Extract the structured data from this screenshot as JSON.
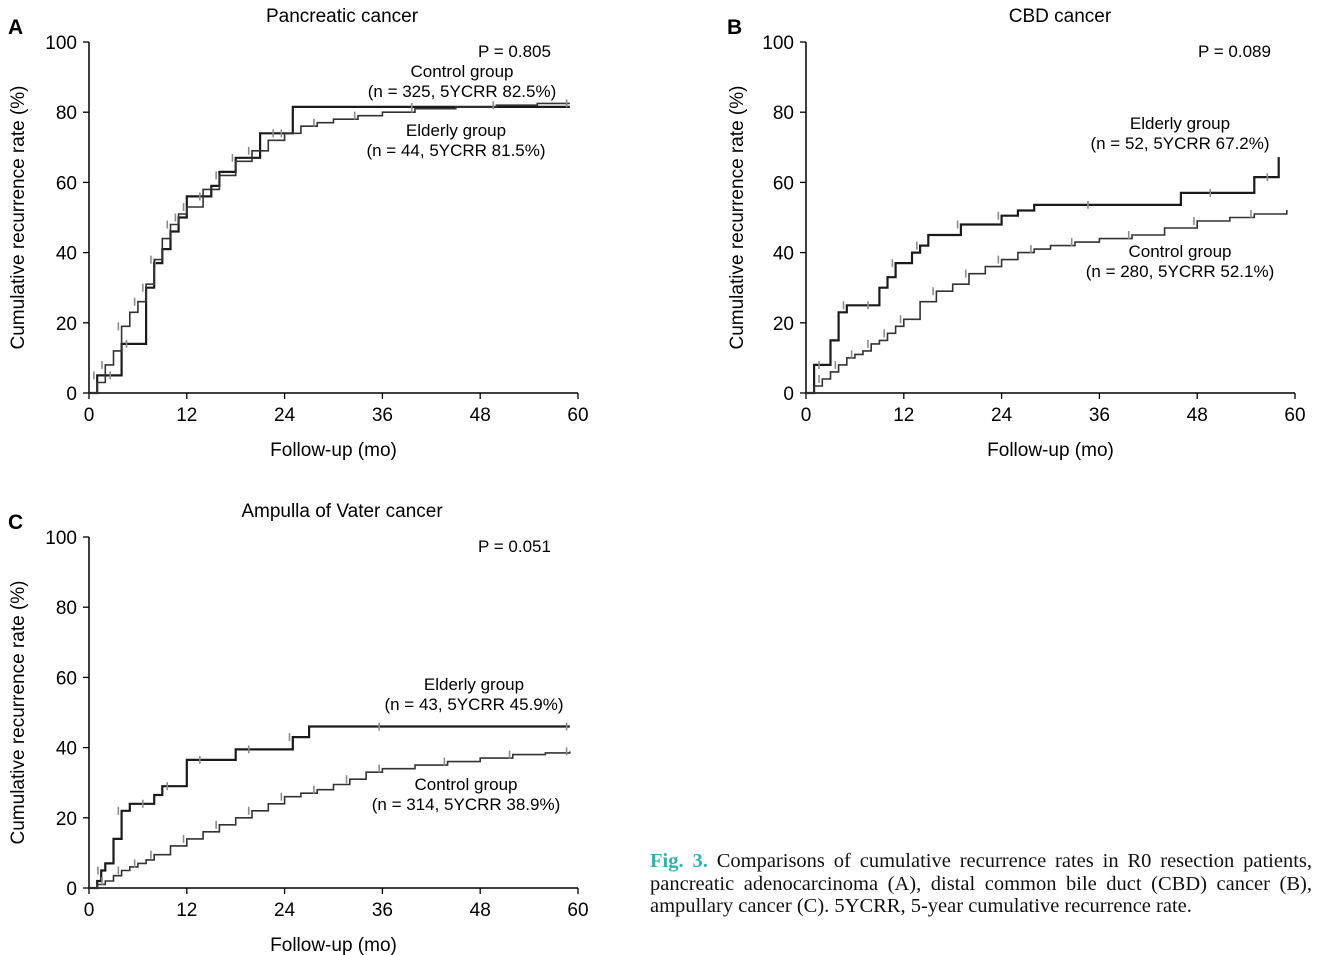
{
  "caption": {
    "label": "Fig. 3.",
    "text": "Comparisons of cumulative recurrence rates in R0 resection patients, pancreatic adenocarcinoma (A), distal common bile duct (CBD) cancer (B), ampullary cancer (C). 5YCRR, 5-year cumulative recurrence rate."
  },
  "colors": {
    "elderly": "#1a1a1a",
    "control": "#333333",
    "censor": "#8c8c8c"
  },
  "chart_data": [
    {
      "panel": "A",
      "type": "line",
      "step": true,
      "title": "Pancreatic cancer",
      "xlabel": "Follow-up (mo)",
      "ylabel": "Cumulative recurrence rate (%)",
      "xlim": [
        0,
        60
      ],
      "ylim": [
        0,
        100
      ],
      "xticks": [
        0,
        12,
        24,
        36,
        48,
        60
      ],
      "yticks": [
        0,
        20,
        40,
        60,
        80,
        100
      ],
      "pvalue": "P = 0.805",
      "annotations": [
        {
          "line1": "Control group",
          "line2": "(n = 325, 5YCRR 82.5%)"
        },
        {
          "line1": "Elderly  group",
          "line2": "(n = 44, 5YCRR 81.5%)"
        }
      ],
      "series": [
        {
          "role": "elderly",
          "x": [
            0,
            0.5,
            1,
            1.5,
            2,
            3,
            4,
            4,
            5,
            6,
            6.5,
            7,
            7.5,
            8,
            8.5,
            9,
            10,
            11,
            12,
            13,
            14,
            15,
            16,
            18,
            20,
            21,
            23,
            25,
            30,
            40,
            50,
            59
          ],
          "y": [
            0,
            0,
            5,
            5,
            5,
            5,
            5,
            14,
            14,
            14,
            14,
            30,
            30,
            37,
            37,
            41,
            46,
            50,
            56,
            56,
            56,
            59,
            63,
            67,
            67,
            74,
            74,
            81.5,
            81.5,
            81.5,
            81.5,
            81.5
          ]
        },
        {
          "role": "control",
          "x": [
            0,
            1,
            2,
            3,
            4,
            5,
            6,
            7,
            8,
            9,
            10,
            11,
            12,
            14,
            16,
            18,
            20,
            22,
            24,
            26,
            28,
            30,
            33,
            36,
            40,
            45,
            50,
            55,
            59
          ],
          "y": [
            0,
            3,
            8,
            12,
            19,
            23,
            26,
            31,
            38,
            44,
            48,
            51,
            53,
            58,
            62,
            66,
            69,
            72,
            74,
            76,
            77,
            78,
            79,
            80,
            81,
            81.5,
            82,
            82.5,
            82.5
          ]
        }
      ]
    },
    {
      "panel": "B",
      "type": "line",
      "step": true,
      "title": "CBD cancer",
      "xlabel": "Follow-up (mo)",
      "ylabel": "Cumulative recurrence rate (%)",
      "xlim": [
        0,
        60
      ],
      "ylim": [
        0,
        100
      ],
      "xticks": [
        0,
        12,
        24,
        36,
        48,
        60
      ],
      "yticks": [
        0,
        20,
        40,
        60,
        80,
        100
      ],
      "pvalue": "P = 0.089",
      "annotations": [
        {
          "line1": "Elderly group",
          "line2": "(n = 52, 5YCRR 67.2%)"
        },
        {
          "line1": "Control group",
          "line2": "(n = 280, 5YCRR 52.1%)"
        }
      ],
      "series": [
        {
          "role": "elderly",
          "x": [
            0,
            1,
            2,
            3,
            4,
            5,
            6,
            7,
            8,
            9,
            10,
            11,
            12,
            13,
            14,
            15,
            17,
            19,
            21,
            22,
            24,
            26,
            28,
            35,
            42,
            46,
            50,
            53,
            55,
            57,
            58
          ],
          "y": [
            0,
            8,
            8,
            15,
            23,
            25,
            25,
            25,
            25,
            30,
            33,
            37,
            37,
            40,
            42,
            45,
            45,
            48,
            48,
            48,
            50.5,
            52,
            53.6,
            53.6,
            53.6,
            57,
            57,
            57,
            61.5,
            61.5,
            67.2
          ]
        },
        {
          "role": "control",
          "x": [
            0,
            1,
            2,
            3,
            4,
            5,
            6,
            7,
            8,
            9,
            10,
            11,
            12,
            14,
            16,
            18,
            20,
            22,
            24,
            26,
            28,
            30,
            33,
            36,
            40,
            44,
            48,
            52,
            55,
            59
          ],
          "y": [
            0,
            2,
            4,
            6,
            8,
            10,
            11,
            12,
            14,
            15,
            17,
            19,
            21,
            26,
            29,
            31,
            34,
            36,
            38,
            40,
            41,
            42,
            43,
            44,
            45,
            47,
            49,
            50,
            51,
            52.1
          ]
        }
      ]
    },
    {
      "panel": "C",
      "type": "line",
      "step": true,
      "title": "Ampulla of Vater cancer",
      "xlabel": "Follow-up (mo)",
      "ylabel": "Cumulative recurrence rate (%)",
      "xlim": [
        0,
        60
      ],
      "ylim": [
        0,
        100
      ],
      "xticks": [
        0,
        12,
        24,
        36,
        48,
        60
      ],
      "yticks": [
        0,
        20,
        40,
        60,
        80,
        100
      ],
      "pvalue": "P = 0.051",
      "annotations": [
        {
          "line1": "Elderly group",
          "line2": "(n = 43, 5YCRR 45.9%)"
        },
        {
          "line1": "Control group",
          "line2": "(n = 314, 5YCRR 38.9%)"
        }
      ],
      "series": [
        {
          "role": "elderly",
          "x": [
            0,
            1,
            1.5,
            2,
            3,
            4,
            5,
            6,
            7,
            8,
            9,
            10,
            11,
            12,
            14,
            16,
            18,
            20,
            22,
            23,
            25,
            27,
            30,
            36,
            45,
            55,
            59
          ],
          "y": [
            0,
            2,
            5,
            7,
            14,
            22,
            24,
            24,
            24,
            26.5,
            29,
            29,
            29,
            36.5,
            36.5,
            36.5,
            39.5,
            39.5,
            39.5,
            39.5,
            43,
            46,
            46,
            46,
            46,
            46,
            46
          ]
        },
        {
          "role": "control",
          "x": [
            0,
            1,
            2,
            3,
            4,
            5,
            6,
            7,
            8,
            10,
            12,
            14,
            16,
            18,
            20,
            22,
            24,
            26,
            28,
            30,
            32,
            34,
            36,
            40,
            44,
            48,
            52,
            56,
            59
          ],
          "y": [
            0,
            1,
            2,
            3.5,
            5,
            6,
            7,
            8,
            9.5,
            12,
            14,
            16,
            18,
            20,
            22,
            24,
            26,
            27,
            28,
            29.5,
            31,
            33,
            34,
            35,
            36,
            37,
            38,
            38.5,
            38.9
          ]
        }
      ]
    }
  ]
}
